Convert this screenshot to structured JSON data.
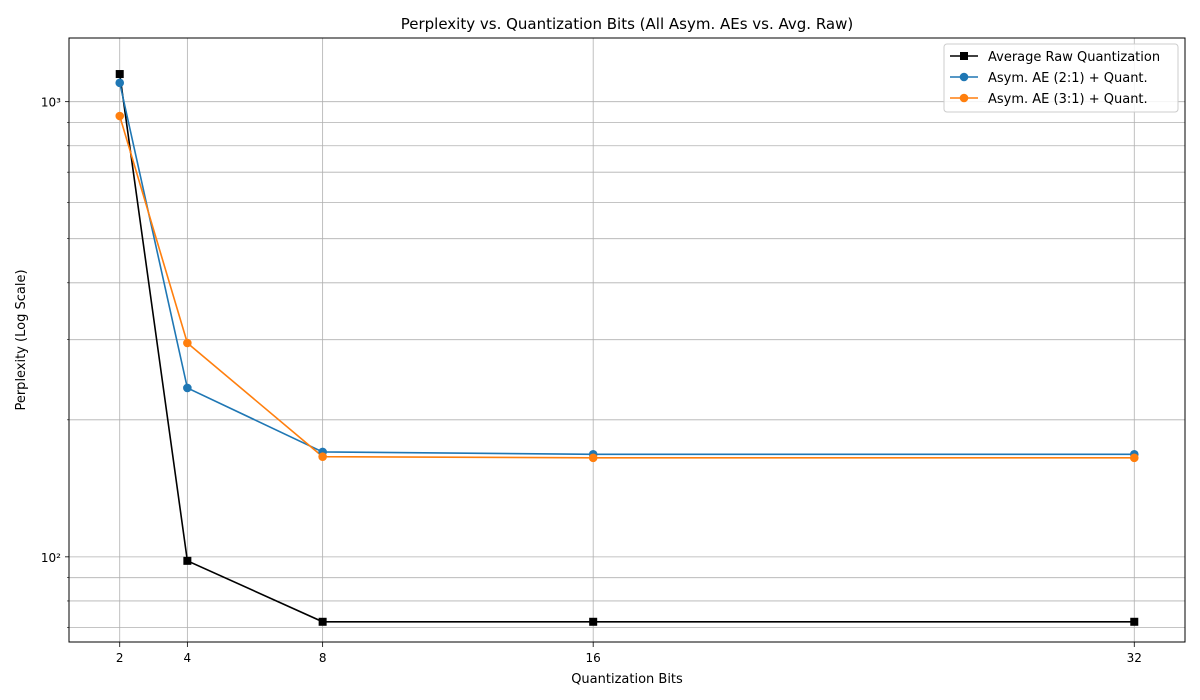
{
  "chart_data": {
    "type": "line",
    "title": "Perplexity vs. Quantization Bits (All Asym. AEs vs. Avg. Raw)",
    "xlabel": "Quantization Bits",
    "ylabel": "Perplexity (Log Scale)",
    "x": [
      2,
      4,
      8,
      16,
      32
    ],
    "x_tick_labels": [
      "2",
      "4",
      "8",
      "16",
      "32"
    ],
    "y_scale": "log",
    "y_tick_labels": [
      "10²",
      "10³"
    ],
    "xlim": [
      0.5,
      33.5
    ],
    "ylim": [
      65,
      1380
    ],
    "grid": true,
    "legend_position": "top-right",
    "series": [
      {
        "name": "Average Raw Quantization",
        "color": "#000000",
        "marker": "square",
        "values": [
          1150,
          98,
          72,
          72,
          72
        ]
      },
      {
        "name": "Asym. AE (2:1) + Quant.",
        "color": "#1f77b4",
        "marker": "circle",
        "values": [
          1100,
          235,
          170,
          168,
          168
        ]
      },
      {
        "name": "Asym. AE (3:1) + Quant.",
        "color": "#ff7f0e",
        "marker": "circle",
        "values": [
          930,
          295,
          166,
          165,
          165
        ]
      }
    ]
  }
}
